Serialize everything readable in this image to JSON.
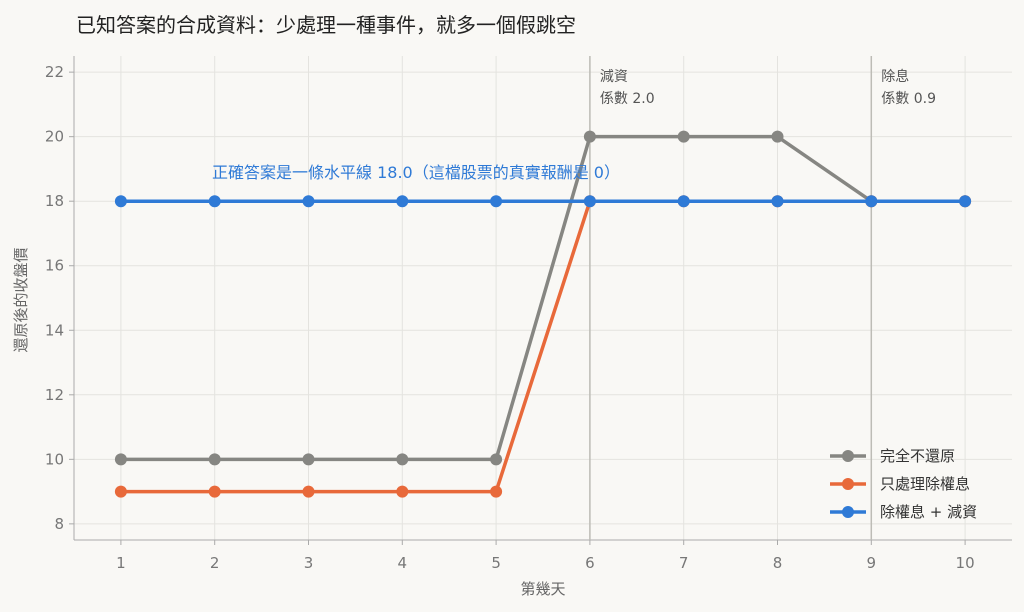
{
  "chart_data": {
    "type": "line",
    "title": "已知答案的合成資料：少處理一種事件，就多一個假跳空",
    "xlabel": "第幾天",
    "ylabel": "還原後的收盤價",
    "x": [
      1,
      2,
      3,
      4,
      5,
      6,
      7,
      8,
      9,
      10
    ],
    "xlim": [
      0.5,
      10.5
    ],
    "ylim": [
      7.5,
      22.5
    ],
    "yticks": [
      8,
      10,
      12,
      14,
      16,
      18,
      20,
      22
    ],
    "grid": true,
    "legend_position": "bottom-right",
    "series": [
      {
        "name": "完全不還原",
        "color": "#868682",
        "values": [
          10,
          10,
          10,
          10,
          10,
          20,
          20,
          20,
          18,
          18
        ]
      },
      {
        "name": "只處理除權息",
        "color": "#e8693a",
        "values": [
          9,
          9,
          9,
          9,
          9,
          18,
          18,
          18,
          18,
          18
        ]
      },
      {
        "name": "除權息 + 減資",
        "color": "#2f7ad6",
        "values": [
          18,
          18,
          18,
          18,
          18,
          18,
          18,
          18,
          18,
          18
        ]
      }
    ],
    "vlines": [
      {
        "x": 6,
        "label_line1": "減資",
        "label_line2": "係數 2.0"
      },
      {
        "x": 9,
        "label_line1": "除息",
        "label_line2": "係數 0.9"
      }
    ],
    "annotation": {
      "text": "正確答案是一條水平線 18.0（這檔股票的真實報酬是 0）",
      "color": "#2f7ad6"
    }
  }
}
